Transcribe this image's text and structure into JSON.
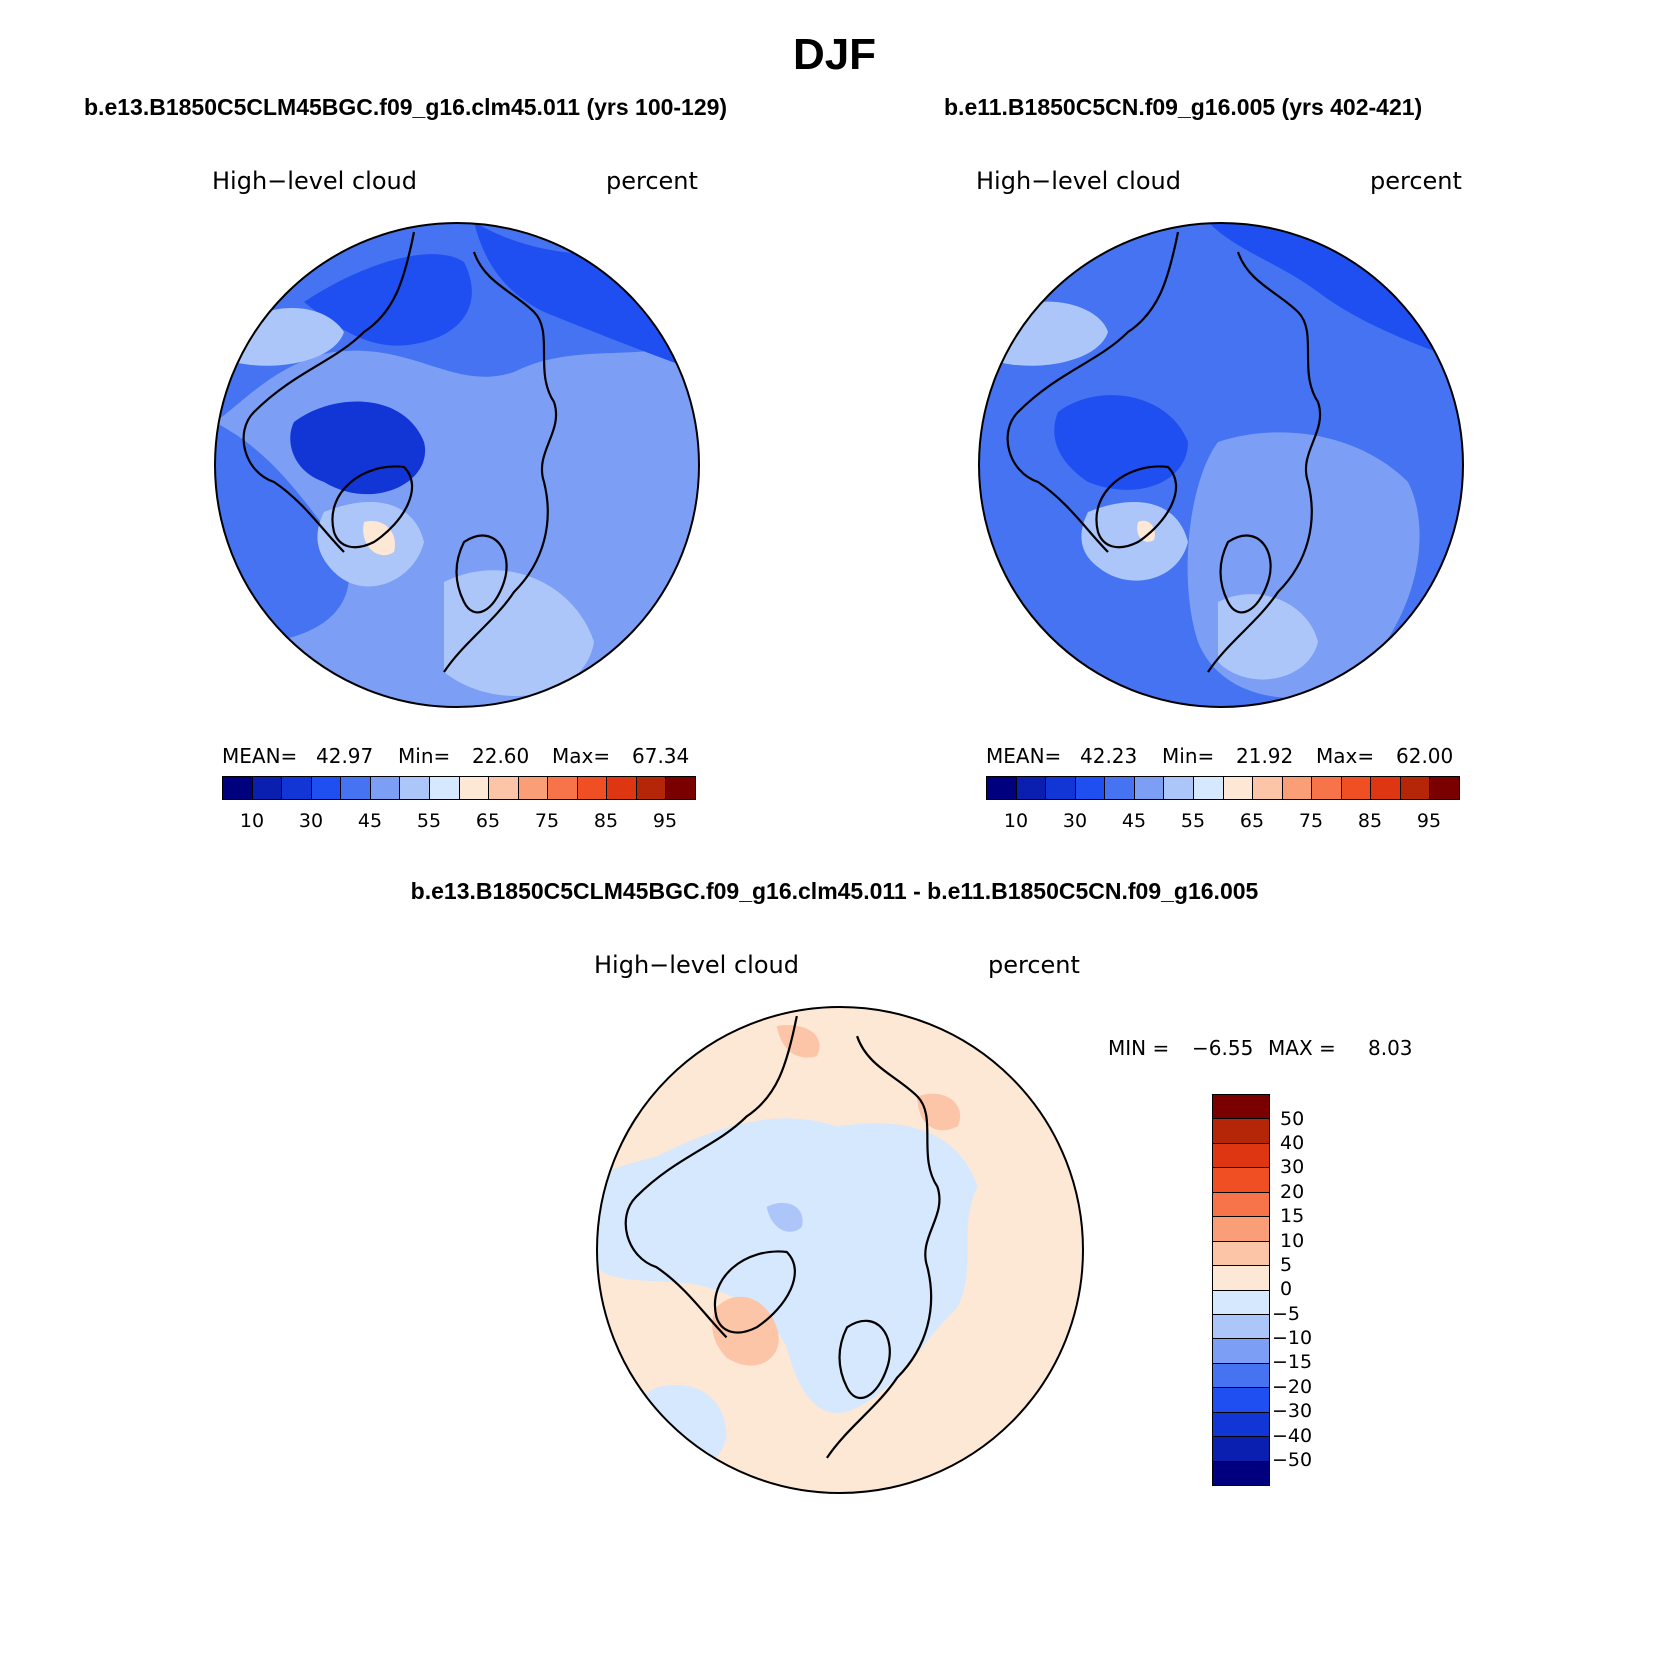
{
  "figure": {
    "season": "DJF",
    "variable_label": "High−level cloud",
    "units_label": "percent"
  },
  "panels": [
    {
      "case_title": "b.e13.B1850C5CLM45BGC.f09_g16.clm45.011 (yrs 100-129)",
      "stats": {
        "mean_label": "MEAN=",
        "mean": "42.97",
        "min_label": "Min=",
        "min": "22.60",
        "max_label": "Max=",
        "max": "67.34"
      }
    },
    {
      "case_title": "b.e11.B1850C5CN.f09_g16.005 (yrs 402-421)",
      "stats": {
        "mean_label": "MEAN=",
        "mean": "42.23",
        "min_label": "Min=",
        "min": "21.92",
        "max_label": "Max=",
        "max": "62.00"
      }
    }
  ],
  "diff_panel": {
    "case_title": "b.e13.B1850C5CLM45BGC.f09_g16.clm45.011 - b.e11.B1850C5CN.f09_g16.005",
    "stats": {
      "min_label": "MIN =",
      "min": "−6.55",
      "max_label": "MAX =",
      "max": "8.03"
    }
  },
  "colorbar_abs": {
    "tick_labels": [
      "10",
      "30",
      "45",
      "55",
      "65",
      "75",
      "85",
      "95"
    ],
    "colors": [
      "#00007f",
      "#0a1fb0",
      "#1235d6",
      "#1f4ff0",
      "#4573f2",
      "#7c9ff5",
      "#adc6fa",
      "#d6e8fd",
      "#fde7d5",
      "#fcc5a8",
      "#fa9e77",
      "#f7744a",
      "#f04f23",
      "#de3512",
      "#b52508",
      "#7a0000"
    ]
  },
  "colorbar_diff": {
    "tick_labels": [
      "50",
      "40",
      "30",
      "20",
      "15",
      "10",
      "5",
      "0",
      "−5",
      "−10",
      "−15",
      "−20",
      "−30",
      "−40",
      "−50"
    ],
    "colors": [
      "#7a0000",
      "#b52508",
      "#de3512",
      "#f04f23",
      "#f7744a",
      "#fa9e77",
      "#fcc5a8",
      "#fde7d5",
      "#d6e8fd",
      "#adc6fa",
      "#7c9ff5",
      "#4573f2",
      "#1f4ff0",
      "#1235d6",
      "#0a1fb0",
      "#00007f"
    ]
  },
  "chart_data": {
    "type": "polar-stereographic contour maps",
    "title": "DJF",
    "variable": "High−level cloud",
    "units": "percent",
    "contour_levels": [
      10,
      30,
      45,
      55,
      65,
      75,
      85,
      95
    ],
    "diff_contour_levels": [
      -50,
      -40,
      -30,
      -20,
      -15,
      -10,
      -5,
      0,
      5,
      10,
      15,
      20,
      30,
      40,
      50
    ],
    "series": [
      {
        "name": "b.e13.B1850C5CLM45BGC.f09_g16.clm45.011 (yrs 100-129)",
        "mean": 42.97,
        "min": 22.6,
        "max": 67.34
      },
      {
        "name": "b.e11.B1850C5CN.f09_g16.005 (yrs 402-421)",
        "mean": 42.23,
        "min": 21.92,
        "max": 62.0
      },
      {
        "name": "b.e13.B1850C5CLM45BGC.f09_g16.clm45.011 - b.e11.B1850C5CN.f09_g16.005",
        "min": -6.55,
        "max": 8.03
      }
    ]
  }
}
